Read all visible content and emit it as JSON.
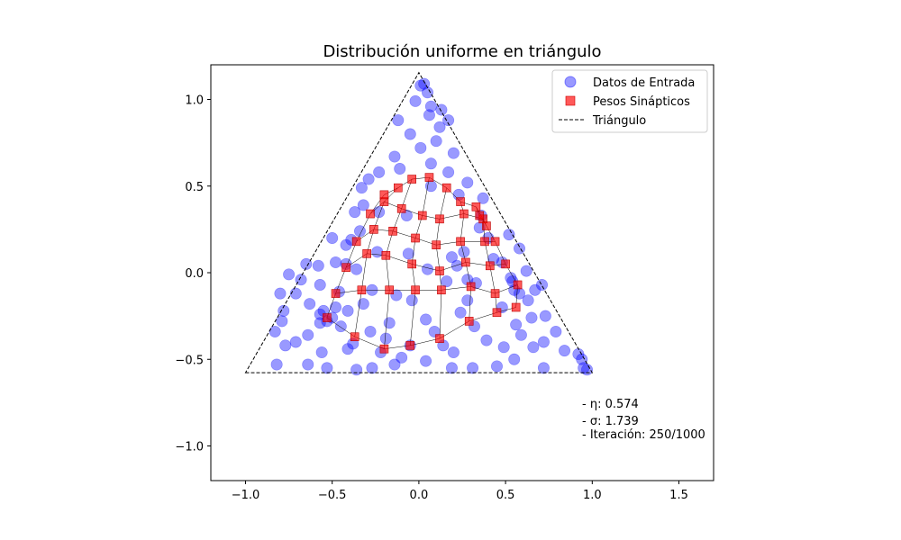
{
  "chart_data": {
    "type": "scatter",
    "title": "Distribución uniforme en triángulo",
    "xlim": [
      -1.2,
      1.7
    ],
    "ylim": [
      -1.2,
      1.2
    ],
    "xticks": [
      -1.0,
      -0.5,
      0.0,
      0.5,
      1.0,
      1.5
    ],
    "xtick_labels": [
      "−1.0",
      "−0.5",
      "0.0",
      "0.5",
      "1.0",
      "1.5"
    ],
    "yticks": [
      -1.0,
      -0.5,
      0.0,
      0.5,
      1.0
    ],
    "ytick_labels": [
      "−1.0",
      "−0.5",
      "0.0",
      "0.5",
      "1.0"
    ],
    "grid": false,
    "legend_position": "top-right",
    "series": [
      {
        "name": "Datos de Entrada",
        "marker": "circle",
        "color": "#0000ff"
      },
      {
        "name": "Pesos Sinápticos",
        "marker": "square",
        "color": "#ff0000"
      },
      {
        "name": "Triángulo",
        "marker": "dashed-line",
        "color": "#000000"
      }
    ],
    "triangle": [
      [
        -1.0,
        -0.577
      ],
      [
        1.0,
        -0.577
      ],
      [
        0.0,
        1.155
      ]
    ],
    "annotations": [
      {
        "label": "- η: 0.574"
      },
      {
        "label": "- σ: 1.739"
      },
      {
        "label": "- Iteración: 250/1000"
      }
    ],
    "input_data": [
      [
        0.01,
        1.08
      ],
      [
        0.03,
        1.09
      ],
      [
        0.05,
        1.04
      ],
      [
        -0.02,
        0.99
      ],
      [
        0.07,
        0.96
      ],
      [
        0.13,
        0.94
      ],
      [
        -0.12,
        0.88
      ],
      [
        0.12,
        0.84
      ],
      [
        0.17,
        0.88
      ],
      [
        0.06,
        0.91
      ],
      [
        -0.05,
        0.8
      ],
      [
        0.1,
        0.76
      ],
      [
        0.01,
        0.72
      ],
      [
        -0.14,
        0.67
      ],
      [
        0.2,
        0.69
      ],
      [
        0.07,
        0.63
      ],
      [
        -0.23,
        0.58
      ],
      [
        0.17,
        0.58
      ],
      [
        -0.33,
        0.49
      ],
      [
        0.23,
        0.45
      ],
      [
        -0.29,
        0.54
      ],
      [
        0.37,
        0.43
      ],
      [
        0.28,
        0.52
      ],
      [
        -0.11,
        0.6
      ],
      [
        0.07,
        0.5
      ],
      [
        -0.32,
        0.39
      ],
      [
        -0.37,
        0.35
      ],
      [
        -0.23,
        0.35
      ],
      [
        -0.07,
        0.33
      ],
      [
        0.36,
        0.33
      ],
      [
        -0.39,
        0.19
      ],
      [
        -0.42,
        0.16
      ],
      [
        -0.5,
        0.2
      ],
      [
        0.4,
        0.2
      ],
      [
        0.52,
        0.22
      ],
      [
        0.58,
        0.14
      ],
      [
        -0.24,
        0.12
      ],
      [
        -0.06,
        0.11
      ],
      [
        0.19,
        0.09
      ],
      [
        0.43,
        0.08
      ],
      [
        -0.65,
        0.05
      ],
      [
        -0.58,
        0.04
      ],
      [
        -0.48,
        0.06
      ],
      [
        -0.36,
        0.02
      ],
      [
        0.05,
        0.02
      ],
      [
        0.22,
        0.04
      ],
      [
        0.48,
        0.06
      ],
      [
        0.62,
        0.01
      ],
      [
        -0.75,
        -0.01
      ],
      [
        -0.68,
        -0.04
      ],
      [
        -0.57,
        -0.07
      ],
      [
        0.16,
        -0.05
      ],
      [
        0.28,
        -0.04
      ],
      [
        0.53,
        -0.03
      ],
      [
        -0.8,
        -0.12
      ],
      [
        -0.71,
        -0.12
      ],
      [
        -0.46,
        -0.11
      ],
      [
        -0.27,
        -0.1
      ],
      [
        -0.13,
        -0.13
      ],
      [
        0.28,
        -0.16
      ],
      [
        0.58,
        -0.12
      ],
      [
        0.71,
        -0.07
      ],
      [
        0.67,
        -0.1
      ],
      [
        -0.78,
        -0.22
      ],
      [
        -0.63,
        -0.18
      ],
      [
        -0.41,
        -0.22
      ],
      [
        -0.32,
        -0.18
      ],
      [
        -0.04,
        -0.16
      ],
      [
        0.24,
        -0.23
      ],
      [
        0.48,
        -0.2
      ],
      [
        0.63,
        -0.16
      ],
      [
        -0.79,
        -0.28
      ],
      [
        -0.57,
        -0.29
      ],
      [
        -0.45,
        -0.31
      ],
      [
        -0.28,
        -0.34
      ],
      [
        -0.17,
        -0.29
      ],
      [
        0.04,
        -0.27
      ],
      [
        0.09,
        -0.34
      ],
      [
        0.32,
        -0.31
      ],
      [
        0.56,
        -0.3
      ],
      [
        0.65,
        -0.26
      ],
      [
        0.73,
        -0.25
      ],
      [
        -0.83,
        -0.34
      ],
      [
        -0.71,
        -0.4
      ],
      [
        -0.64,
        -0.36
      ],
      [
        -0.38,
        -0.41
      ],
      [
        -0.19,
        -0.38
      ],
      [
        -0.05,
        -0.42
      ],
      [
        0.14,
        -0.42
      ],
      [
        0.39,
        -0.39
      ],
      [
        0.59,
        -0.36
      ],
      [
        0.72,
        -0.4
      ],
      [
        0.79,
        -0.34
      ],
      [
        -0.77,
        -0.42
      ],
      [
        -0.56,
        -0.46
      ],
      [
        -0.41,
        -0.44
      ],
      [
        -0.22,
        -0.46
      ],
      [
        -0.1,
        -0.49
      ],
      [
        0.2,
        -0.46
      ],
      [
        0.49,
        -0.43
      ],
      [
        0.66,
        -0.43
      ],
      [
        0.84,
        -0.45
      ],
      [
        0.92,
        -0.47
      ],
      [
        0.94,
        -0.5
      ],
      [
        -0.82,
        -0.53
      ],
      [
        -0.64,
        -0.53
      ],
      [
        -0.53,
        -0.55
      ],
      [
        -0.36,
        -0.56
      ],
      [
        -0.27,
        -0.55
      ],
      [
        -0.14,
        -0.53
      ],
      [
        0.04,
        -0.51
      ],
      [
        0.19,
        -0.55
      ],
      [
        0.31,
        -0.55
      ],
      [
        0.45,
        -0.54
      ],
      [
        0.55,
        -0.5
      ],
      [
        0.72,
        -0.55
      ],
      [
        0.95,
        -0.55
      ],
      [
        0.97,
        -0.56
      ],
      [
        -0.57,
        -0.24
      ],
      [
        -0.55,
        -0.22
      ],
      [
        -0.5,
        -0.26
      ],
      [
        -0.53,
        -0.28
      ],
      [
        -0.48,
        -0.2
      ],
      [
        0.54,
        -0.05
      ],
      [
        0.55,
        -0.1
      ],
      [
        -0.42,
        0.05
      ],
      [
        0.35,
        0.26
      ],
      [
        0.33,
        -0.06
      ],
      [
        -0.34,
        0.24
      ],
      [
        0.26,
        0.12
      ]
    ],
    "weights_grid": [
      [
        [
          -0.53,
          -0.26
        ],
        [
          -0.37,
          -0.37
        ],
        [
          -0.2,
          -0.44
        ],
        [
          -0.05,
          -0.42
        ],
        [
          0.12,
          -0.38
        ],
        [
          0.29,
          -0.28
        ],
        [
          0.45,
          -0.23
        ],
        [
          0.56,
          -0.2
        ]
      ],
      [
        [
          -0.48,
          -0.12
        ],
        [
          -0.33,
          -0.1
        ],
        [
          -0.17,
          -0.1
        ],
        [
          -0.02,
          -0.1
        ],
        [
          0.13,
          -0.1
        ],
        [
          0.3,
          -0.08
        ],
        [
          0.44,
          -0.12
        ],
        [
          0.57,
          -0.07
        ]
      ],
      [
        [
          -0.42,
          0.03
        ],
        [
          -0.3,
          0.11
        ],
        [
          -0.19,
          0.1
        ],
        [
          -0.04,
          0.05
        ],
        [
          0.12,
          0.01
        ],
        [
          0.27,
          0.06
        ],
        [
          0.41,
          0.04
        ],
        [
          0.5,
          0.05
        ]
      ],
      [
        [
          -0.36,
          0.18
        ],
        [
          -0.26,
          0.25
        ],
        [
          -0.15,
          0.24
        ],
        [
          -0.02,
          0.2
        ],
        [
          0.1,
          0.16
        ],
        [
          0.24,
          0.18
        ],
        [
          0.38,
          0.18
        ],
        [
          0.44,
          0.18
        ]
      ],
      [
        [
          -0.28,
          0.34
        ],
        [
          -0.2,
          0.41
        ],
        [
          -0.1,
          0.37
        ],
        [
          0.02,
          0.33
        ],
        [
          0.12,
          0.31
        ],
        [
          0.26,
          0.34
        ],
        [
          0.37,
          0.31
        ],
        [
          0.39,
          0.27
        ]
      ],
      [
        [
          -0.2,
          0.45
        ],
        [
          -0.12,
          0.49
        ],
        [
          -0.04,
          0.54
        ],
        [
          0.06,
          0.55
        ],
        [
          0.16,
          0.49
        ],
        [
          0.24,
          0.41
        ],
        [
          0.33,
          0.38
        ],
        [
          0.35,
          0.33
        ]
      ]
    ]
  }
}
